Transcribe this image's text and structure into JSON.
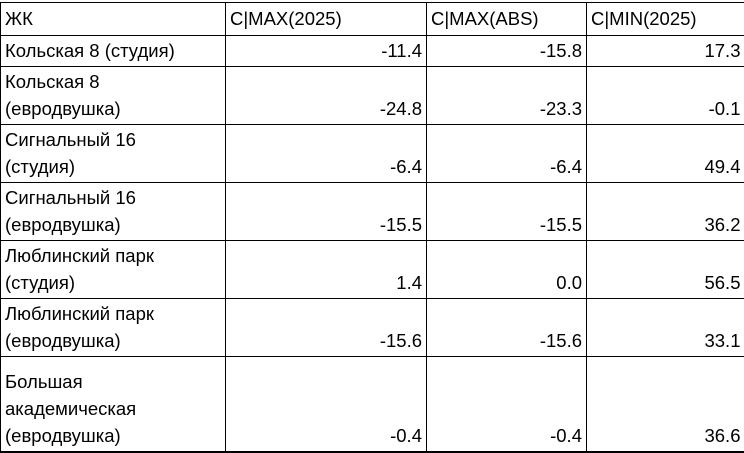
{
  "colors": {
    "background": "#ffffff",
    "text": "#000000",
    "grid_border": "#000000"
  },
  "table": {
    "headers": {
      "name": "ЖК",
      "c_max_2025": "C|MAX(2025)",
      "c_max_abs": "C|MAX(ABS)",
      "c_min_2025": "C|MIN(2025)"
    },
    "rows": [
      {
        "name": "Кольская 8 (студия)",
        "c_max_2025": "-11.4",
        "c_max_abs": "-15.8",
        "c_min_2025": "17.3"
      },
      {
        "name": "Кольская 8\n(евродвушка)",
        "c_max_2025": "-24.8",
        "c_max_abs": "-23.3",
        "c_min_2025": "-0.1"
      },
      {
        "name": "Сигнальный 16\n(студия)",
        "c_max_2025": "-6.4",
        "c_max_abs": "-6.4",
        "c_min_2025": "49.4"
      },
      {
        "name": "Сигнальный 16\n(евродвушка)",
        "c_max_2025": "-15.5",
        "c_max_abs": "-15.5",
        "c_min_2025": "36.2"
      },
      {
        "name": "Люблинский парк\n(студия)",
        "c_max_2025": "1.4",
        "c_max_abs": "0.0",
        "c_min_2025": "56.5"
      },
      {
        "name": "Люблинский парк\n(евродвушка)",
        "c_max_2025": "-15.6",
        "c_max_abs": "-15.6",
        "c_min_2025": "33.1"
      },
      {
        "name": "Большая\nакадемическая\n(евродвушка)",
        "c_max_2025": "-0.4",
        "c_max_abs": "-0.4",
        "c_min_2025": "36.6"
      }
    ]
  },
  "chart_data": {
    "type": "table",
    "title": "",
    "columns": [
      "ЖК",
      "C|MAX(2025)",
      "C|MAX(ABS)",
      "C|MIN(2025)"
    ],
    "rows": [
      [
        "Кольская 8 (студия)",
        -11.4,
        -15.8,
        17.3
      ],
      [
        "Кольская 8 (евродвушка)",
        -24.8,
        -23.3,
        -0.1
      ],
      [
        "Сигнальный 16 (студия)",
        -6.4,
        -6.4,
        49.4
      ],
      [
        "Сигнальный 16 (евродвушка)",
        -15.5,
        -15.5,
        36.2
      ],
      [
        "Люблинский парк (студия)",
        1.4,
        0.0,
        56.5
      ],
      [
        "Люблинский парк (евродвушка)",
        -15.6,
        -15.6,
        33.1
      ],
      [
        "Большая академическая (евродвушка)",
        -0.4,
        -0.4,
        36.6
      ]
    ]
  }
}
